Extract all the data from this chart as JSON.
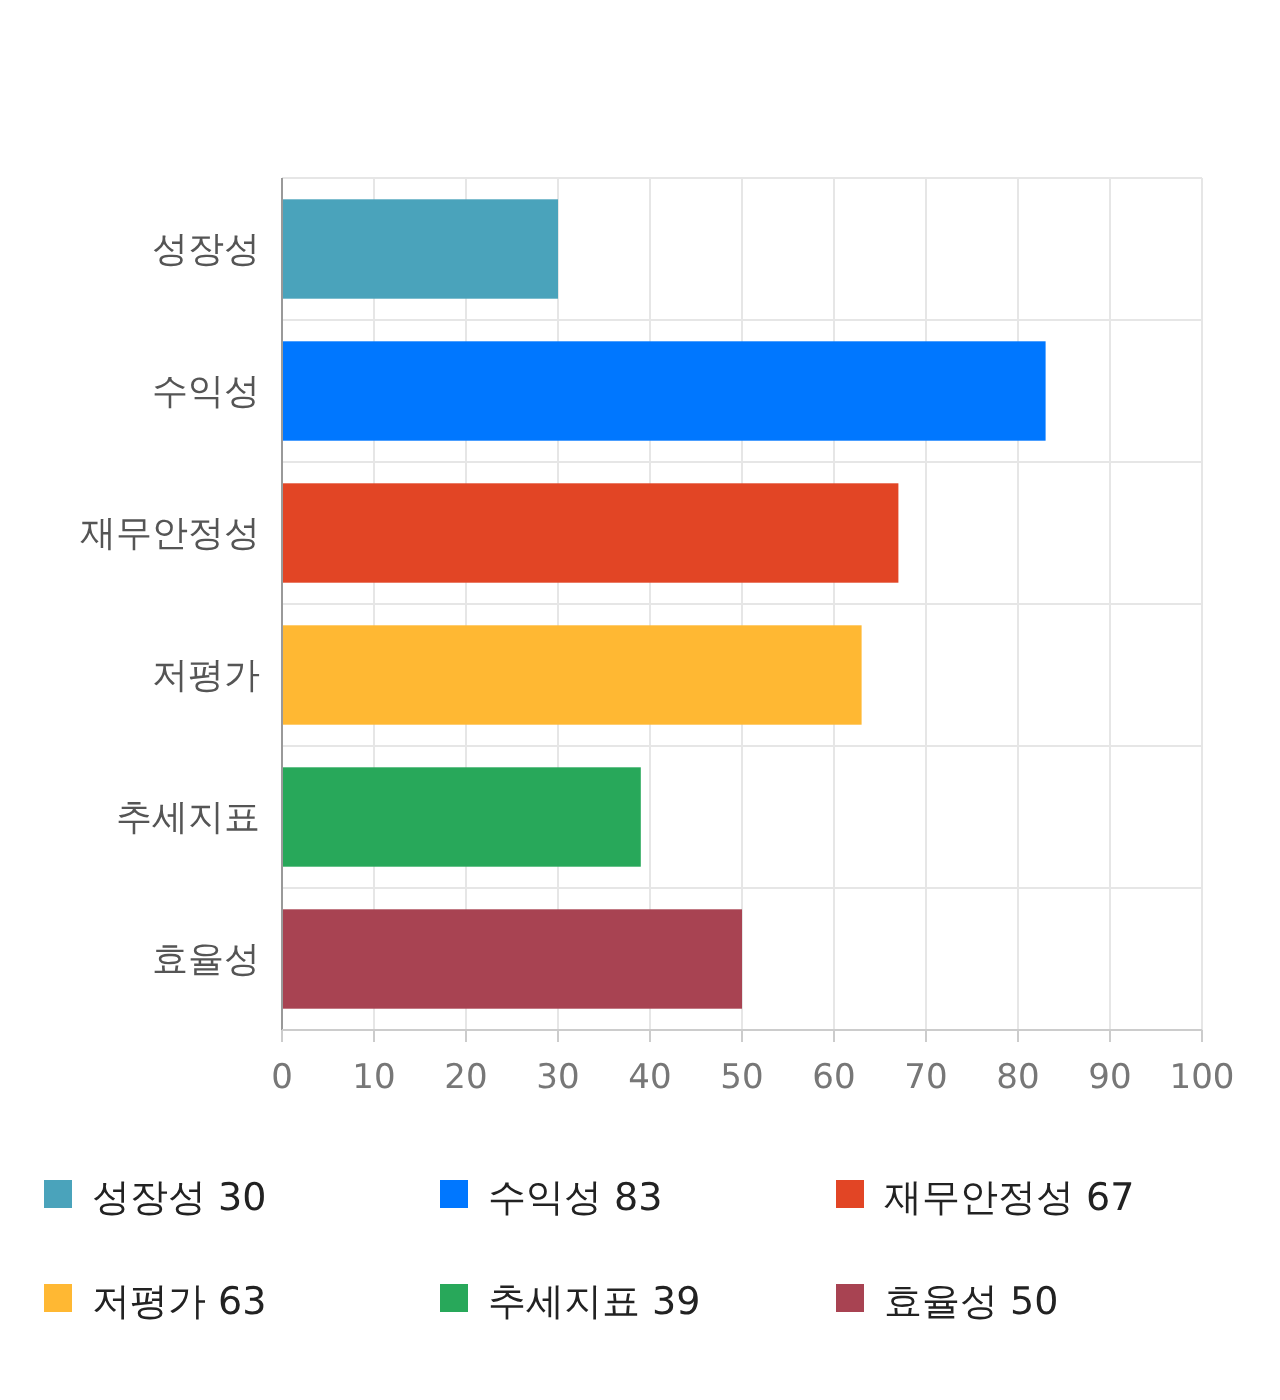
{
  "chart_data": {
    "type": "bar",
    "orientation": "horizontal",
    "stacked": true,
    "categories": [
      "성장성",
      "수익성",
      "재무안정성",
      "저평가",
      "추세지표",
      "효율성"
    ],
    "series": [
      {
        "name": "성장성 30",
        "color": "#4aa3bb",
        "values": [
          30,
          null,
          null,
          null,
          null,
          null
        ]
      },
      {
        "name": "수익성 83",
        "color": "#0077ff",
        "values": [
          null,
          83,
          null,
          null,
          null,
          null
        ]
      },
      {
        "name": "재무안정성 67",
        "color": "#e24525",
        "values": [
          null,
          null,
          67,
          null,
          null,
          null
        ]
      },
      {
        "name": "저평가 63",
        "color": "#ffb833",
        "values": [
          null,
          null,
          null,
          63,
          null,
          null
        ]
      },
      {
        "name": "추세지표 39",
        "color": "#28a85a",
        "values": [
          null,
          null,
          null,
          null,
          39,
          null
        ]
      },
      {
        "name": "효율성 50",
        "color": "#a84352",
        "values": [
          null,
          null,
          null,
          null,
          null,
          50
        ]
      }
    ],
    "xlim": [
      0,
      100
    ],
    "xticks": [
      0,
      10,
      20,
      30,
      40,
      50,
      60,
      70,
      80,
      90,
      100
    ],
    "grid": true,
    "legend": "bottom"
  }
}
